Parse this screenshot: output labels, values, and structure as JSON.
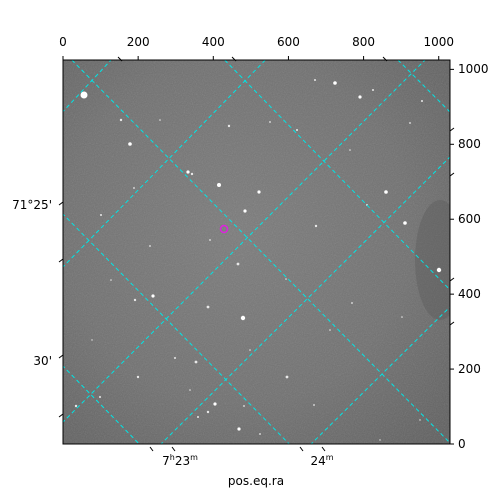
{
  "image": {
    "type": "astronomical-fits-cutout",
    "colormap": "grayscale",
    "grid_color": "#00e5e5",
    "marker_color": "#e020e0"
  },
  "axes": {
    "xlabel": "pos.eq.ra",
    "top_pixel_ticks": [
      "0",
      "200",
      "400",
      "600",
      "800",
      "1000"
    ],
    "right_pixel_ticks": [
      "0",
      "200",
      "400",
      "600",
      "800",
      "1000"
    ],
    "dec_ticks": [
      {
        "label": "71°25'"
      },
      {
        "label": "30'"
      }
    ],
    "ra_ticks": [
      {
        "hours": "7",
        "h": "h",
        "minutes": "23",
        "m": "m"
      },
      {
        "minutes": "24",
        "m": "m"
      }
    ]
  }
}
